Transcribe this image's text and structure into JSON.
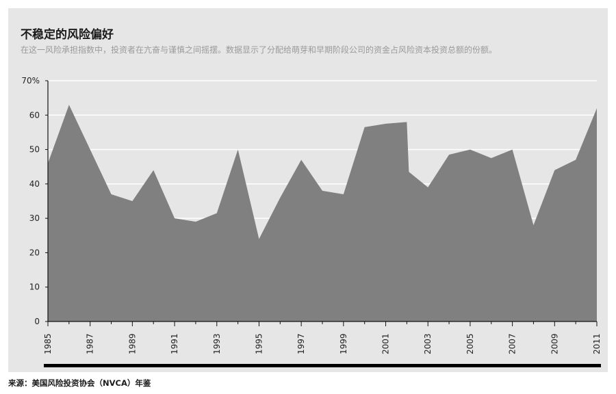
{
  "chart_data": {
    "type": "area",
    "title": "不稳定的风险偏好",
    "subtitle": "在这一风险承担指数中，投资者在亢奋与谨慎之间摇摆。数据显示了分配给萌芽和早期阶段公司的资金占风险资本投资总额的份额。",
    "source": "来源：美国风险投资协会（NVCA）年鉴",
    "x": [
      1985,
      1986,
      1987,
      1988,
      1989,
      1990,
      1991,
      1992,
      1993,
      1994,
      1995,
      1996,
      1997,
      1998,
      1999,
      2000,
      2001,
      2002,
      2002,
      2003,
      2004,
      2005,
      2006,
      2007,
      2008,
      2009,
      2010,
      2011
    ],
    "values": [
      46,
      63,
      50,
      37,
      35,
      44,
      30,
      29,
      31.5,
      50,
      24,
      36,
      47,
      38,
      37,
      56.5,
      57.5,
      58,
      43.5,
      39,
      48.5,
      50,
      47.5,
      50,
      28,
      44,
      47,
      62
    ],
    "xticks": [
      "1985",
      "1987",
      "1989",
      "1991",
      "1993",
      "1995",
      "1997",
      "1999",
      "2001",
      "2003",
      "2005",
      "2007",
      "2009",
      "2011"
    ],
    "yticks": [
      "0",
      "10",
      "20",
      "30",
      "40",
      "50",
      "60",
      "70%"
    ],
    "ylim": [
      0,
      70
    ],
    "xlim": [
      1985,
      2011
    ],
    "grid": true,
    "fill_color": "#808080",
    "grid_color": "#ffffff",
    "axis_color": "#111111"
  }
}
